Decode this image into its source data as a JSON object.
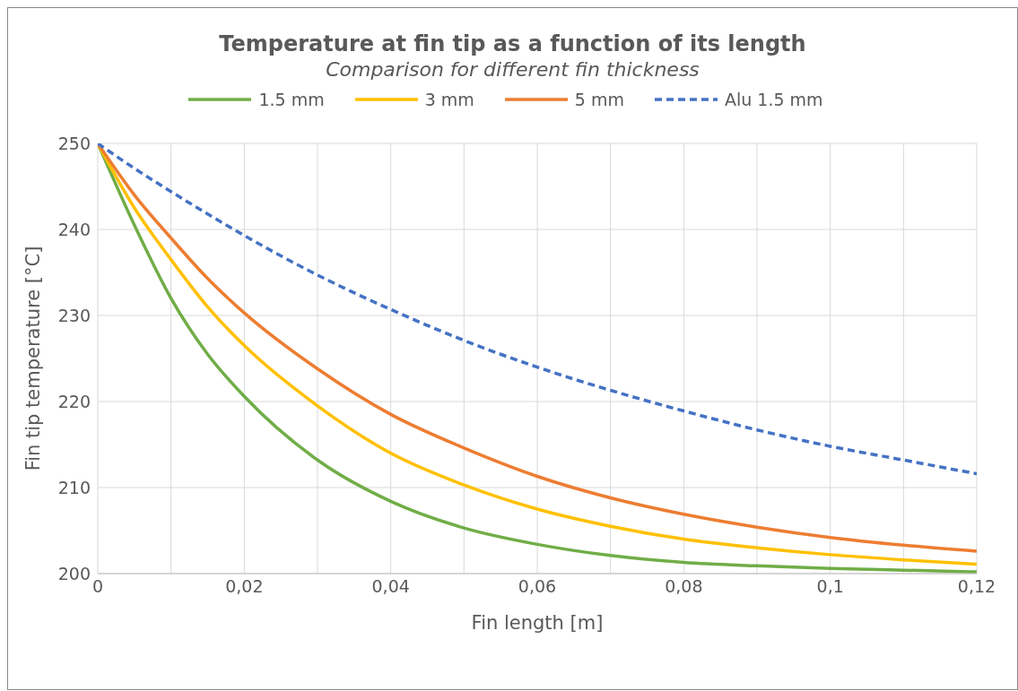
{
  "chart_data": {
    "type": "line",
    "title": "Temperature at fin tip as a function of its length",
    "subtitle": "Comparison for different fin thickness",
    "xlabel": "Fin length [m]",
    "ylabel": "Fin tip temperature [°C]",
    "x": [
      0,
      0.005,
      0.01,
      0.015,
      0.02,
      0.03,
      0.04,
      0.05,
      0.06,
      0.07,
      0.08,
      0.09,
      0.1,
      0.11,
      0.12
    ],
    "series": [
      {
        "name": "1.5 mm",
        "color": "#70ad47",
        "line_style": "solid",
        "values": [
          250,
          240.5,
          232,
          225.5,
          220.6,
          213.2,
          208.4,
          205.3,
          203.4,
          202.1,
          201.3,
          200.9,
          200.6,
          200.4,
          200.2
        ]
      },
      {
        "name": "3 mm",
        "color": "#ffc000",
        "line_style": "solid",
        "values": [
          250,
          242.5,
          236.5,
          231,
          226.5,
          219.5,
          214,
          210.3,
          207.5,
          205.5,
          204,
          203,
          202.2,
          201.6,
          201.1
        ]
      },
      {
        "name": "5 mm",
        "color": "#ed7d31",
        "line_style": "solid",
        "values": [
          250,
          244,
          239,
          234.3,
          230.3,
          223.8,
          218.5,
          214.6,
          211.3,
          208.8,
          206.9,
          205.4,
          204.2,
          203.3,
          202.6
        ]
      },
      {
        "name": "Alu 1.5 mm",
        "color": "#4472c4",
        "line_style": "dashed",
        "values": [
          250,
          247.1,
          244.4,
          241.8,
          239.3,
          234.7,
          230.7,
          227.1,
          224,
          221.3,
          218.9,
          216.7,
          214.8,
          213.2,
          211.6
        ]
      }
    ],
    "xlim": [
      0,
      0.12
    ],
    "xticks": [
      0,
      {
        "value": 0.01,
        "label": null
      },
      {
        "value": 0.02,
        "label": "0,02"
      },
      {
        "value": 0.03,
        "label": null
      },
      {
        "value": 0.04,
        "label": "0,04"
      },
      {
        "value": 0.05,
        "label": null
      },
      {
        "value": 0.06,
        "label": "0,06"
      },
      {
        "value": 0.07,
        "label": null
      },
      {
        "value": 0.08,
        "label": "0,08"
      },
      {
        "value": 0.09,
        "label": null
      },
      {
        "value": 0.1,
        "label": "0,1"
      },
      {
        "value": 0.11,
        "label": null
      },
      {
        "value": 0.12,
        "label": "0,12"
      }
    ],
    "ylim": [
      200,
      250
    ],
    "yticks": [
      200,
      210,
      220,
      230,
      240,
      250
    ],
    "grid": true,
    "legend": "top",
    "marker": "none"
  }
}
